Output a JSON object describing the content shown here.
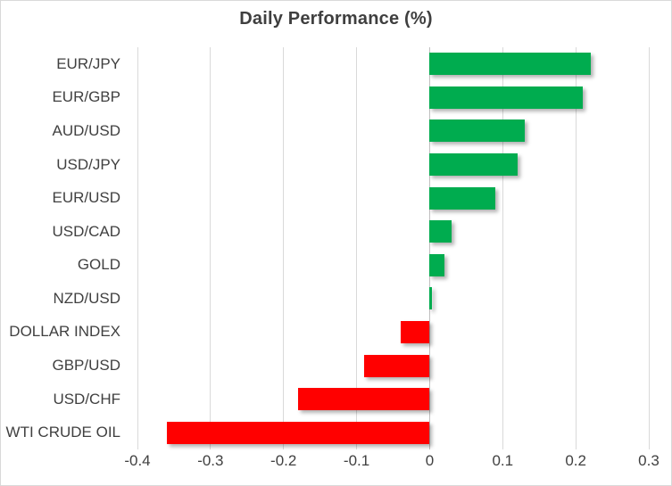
{
  "title": "Daily Performance (%)",
  "colors": {
    "positive_bar": "#00AC4F",
    "negative_bar": "#FF0000",
    "gridline": "#D9D9D9",
    "zero_axis_line": "#C0C0C0",
    "title_text": "#3F3F3F",
    "label_text": "#404040",
    "chart_border": "#D9D9D9"
  },
  "chart_data": {
    "type": "bar",
    "orientation": "horizontal",
    "title": "Daily Performance (%)",
    "categories": [
      "EUR/JPY",
      "EUR/GBP",
      "AUD/USD",
      "USD/JPY",
      "EUR/USD",
      "USD/CAD",
      "GOLD",
      "NZD/USD",
      "DOLLAR INDEX",
      "GBP/USD",
      "USD/CHF",
      "WTI CRUDE OIL"
    ],
    "values": [
      0.22,
      0.21,
      0.13,
      0.12,
      0.09,
      0.03,
      0.02,
      0.003,
      -0.04,
      -0.09,
      -0.18,
      -0.36
    ],
    "xlabel": "",
    "ylabel": "",
    "xlim": [
      -0.4,
      0.3
    ],
    "xticks": [
      -0.4,
      -0.3,
      -0.2,
      -0.1,
      0,
      0.1,
      0.2,
      0.3
    ],
    "xtick_labels": [
      "-0.4",
      "-0.3",
      "-0.2",
      "-0.1",
      "0",
      "0.1",
      "0.2",
      "0.3"
    ],
    "grid": true,
    "legend": false
  }
}
